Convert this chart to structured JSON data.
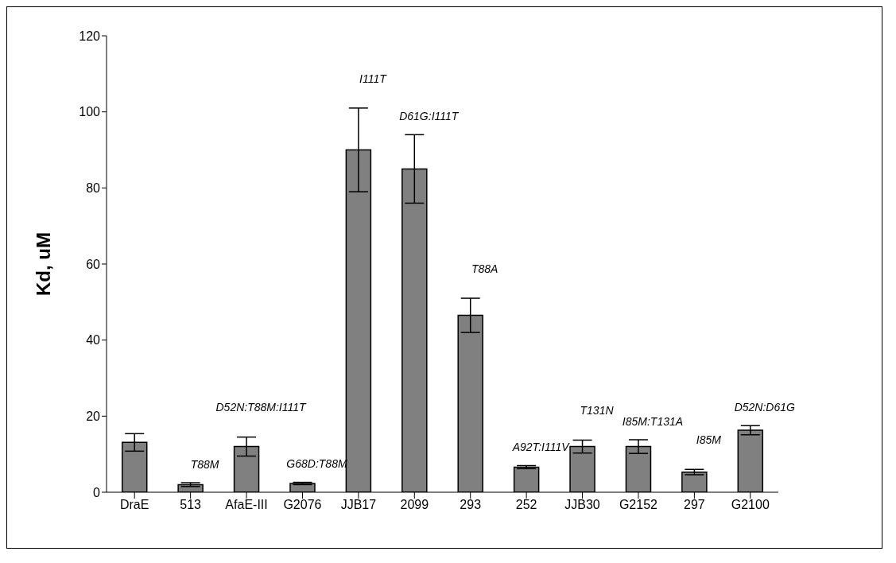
{
  "chart_data": {
    "type": "bar",
    "ylabel": "Kd, uM",
    "categories": [
      "DraE",
      "513",
      "AfaE-III",
      "G2076",
      "JJB17",
      "2099",
      "293",
      "252",
      "JJB30",
      "G2152",
      "297",
      "G2100"
    ],
    "values": [
      13.1,
      2,
      12,
      2.3,
      90,
      85,
      46.5,
      6.6,
      12,
      12,
      5.3,
      16.3
    ],
    "errors": [
      2.3,
      0.5,
      2.5,
      0.3,
      11,
      9,
      4.5,
      0.4,
      1.7,
      1.8,
      0.7,
      1.2
    ],
    "color": "#808080",
    "ylim": [
      0,
      120
    ],
    "yticks": [
      0,
      20,
      40,
      60,
      80,
      100,
      120
    ],
    "annotations": [
      "T88M",
      "D52N:T88M:I111T",
      "G68D:T88M",
      "I111T",
      "D61G:I111T",
      "T88A",
      "A92T:I111V",
      "T131N",
      "I85M:T131A",
      "I85M",
      "D52N:D61G"
    ]
  }
}
